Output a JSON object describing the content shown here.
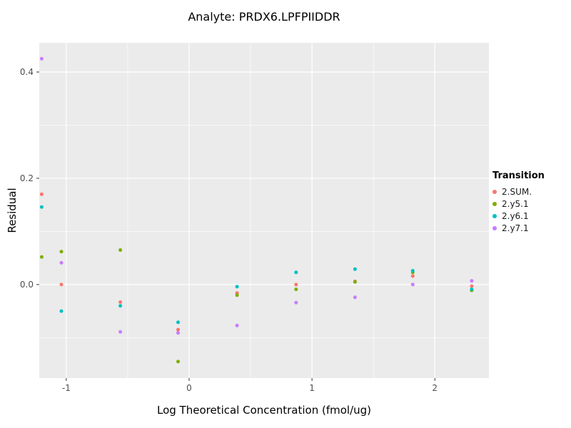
{
  "colors": {
    "figure_bg": "#FFFFFF",
    "panel_bg": "#EBEBEB",
    "grid_major": "#FFFFFF",
    "grid_minor": "#FFFFFF",
    "tick_mark": "#333333",
    "tick_text": "#4D4D4D",
    "title_text": "#000000"
  },
  "chart_data": {
    "type": "scatter",
    "title": "Analyte: PRDX6.LPFPIIDDR",
    "xlabel": "Log Theoretical Concentration (fmol/ug)",
    "ylabel": "Residual",
    "legend_title": "Transition",
    "legend_position": "right",
    "grid": true,
    "xlim": [
      -1.22,
      2.44
    ],
    "ylim": [
      -0.176,
      0.455
    ],
    "x_ticks": [
      -1,
      0,
      1,
      2
    ],
    "x_tick_labels": [
      "-1",
      "0",
      "1",
      "2"
    ],
    "y_ticks": [
      0.0,
      0.2,
      0.4
    ],
    "y_tick_labels": [
      "0.0",
      "0.2",
      "0.4"
    ],
    "x_minor_ticks": [
      -0.5,
      0.5,
      1.5
    ],
    "y_minor_ticks": [
      -0.1,
      0.1,
      0.3
    ],
    "series": [
      {
        "name": "2.SUM.",
        "color": "#F8766D",
        "points": [
          [
            -1.2,
            0.17
          ],
          [
            -1.04,
            0.0
          ],
          [
            -0.56,
            -0.033
          ],
          [
            -0.09,
            -0.085
          ],
          [
            0.39,
            -0.016
          ],
          [
            0.87,
            0.0
          ],
          [
            1.35,
            0.006
          ],
          [
            1.82,
            0.016
          ],
          [
            2.3,
            -0.003
          ]
        ]
      },
      {
        "name": "2.y5.1",
        "color": "#7CAE00",
        "points": [
          [
            -1.2,
            0.052
          ],
          [
            -1.04,
            0.062
          ],
          [
            -0.56,
            0.065
          ],
          [
            -0.09,
            -0.145
          ],
          [
            0.39,
            -0.02
          ],
          [
            0.87,
            -0.009
          ],
          [
            1.35,
            0.005
          ],
          [
            1.82,
            0.023
          ],
          [
            2.3,
            -0.011
          ]
        ]
      },
      {
        "name": "2.y6.1",
        "color": "#00BFC4",
        "points": [
          [
            -1.2,
            0.146
          ],
          [
            -1.04,
            -0.05
          ],
          [
            -0.56,
            -0.04
          ],
          [
            -0.09,
            -0.071
          ],
          [
            0.39,
            -0.004
          ],
          [
            0.87,
            0.023
          ],
          [
            1.35,
            0.029
          ],
          [
            1.82,
            0.026
          ],
          [
            2.3,
            -0.009
          ]
        ]
      },
      {
        "name": "2.y7.1",
        "color": "#C77CFF",
        "points": [
          [
            -1.2,
            0.425
          ],
          [
            -1.04,
            0.041
          ],
          [
            -0.56,
            -0.089
          ],
          [
            -0.09,
            -0.091
          ],
          [
            0.39,
            -0.077
          ],
          [
            0.87,
            -0.034
          ],
          [
            1.35,
            -0.024
          ],
          [
            1.82,
            0.0
          ],
          [
            2.3,
            0.007
          ]
        ]
      }
    ]
  }
}
